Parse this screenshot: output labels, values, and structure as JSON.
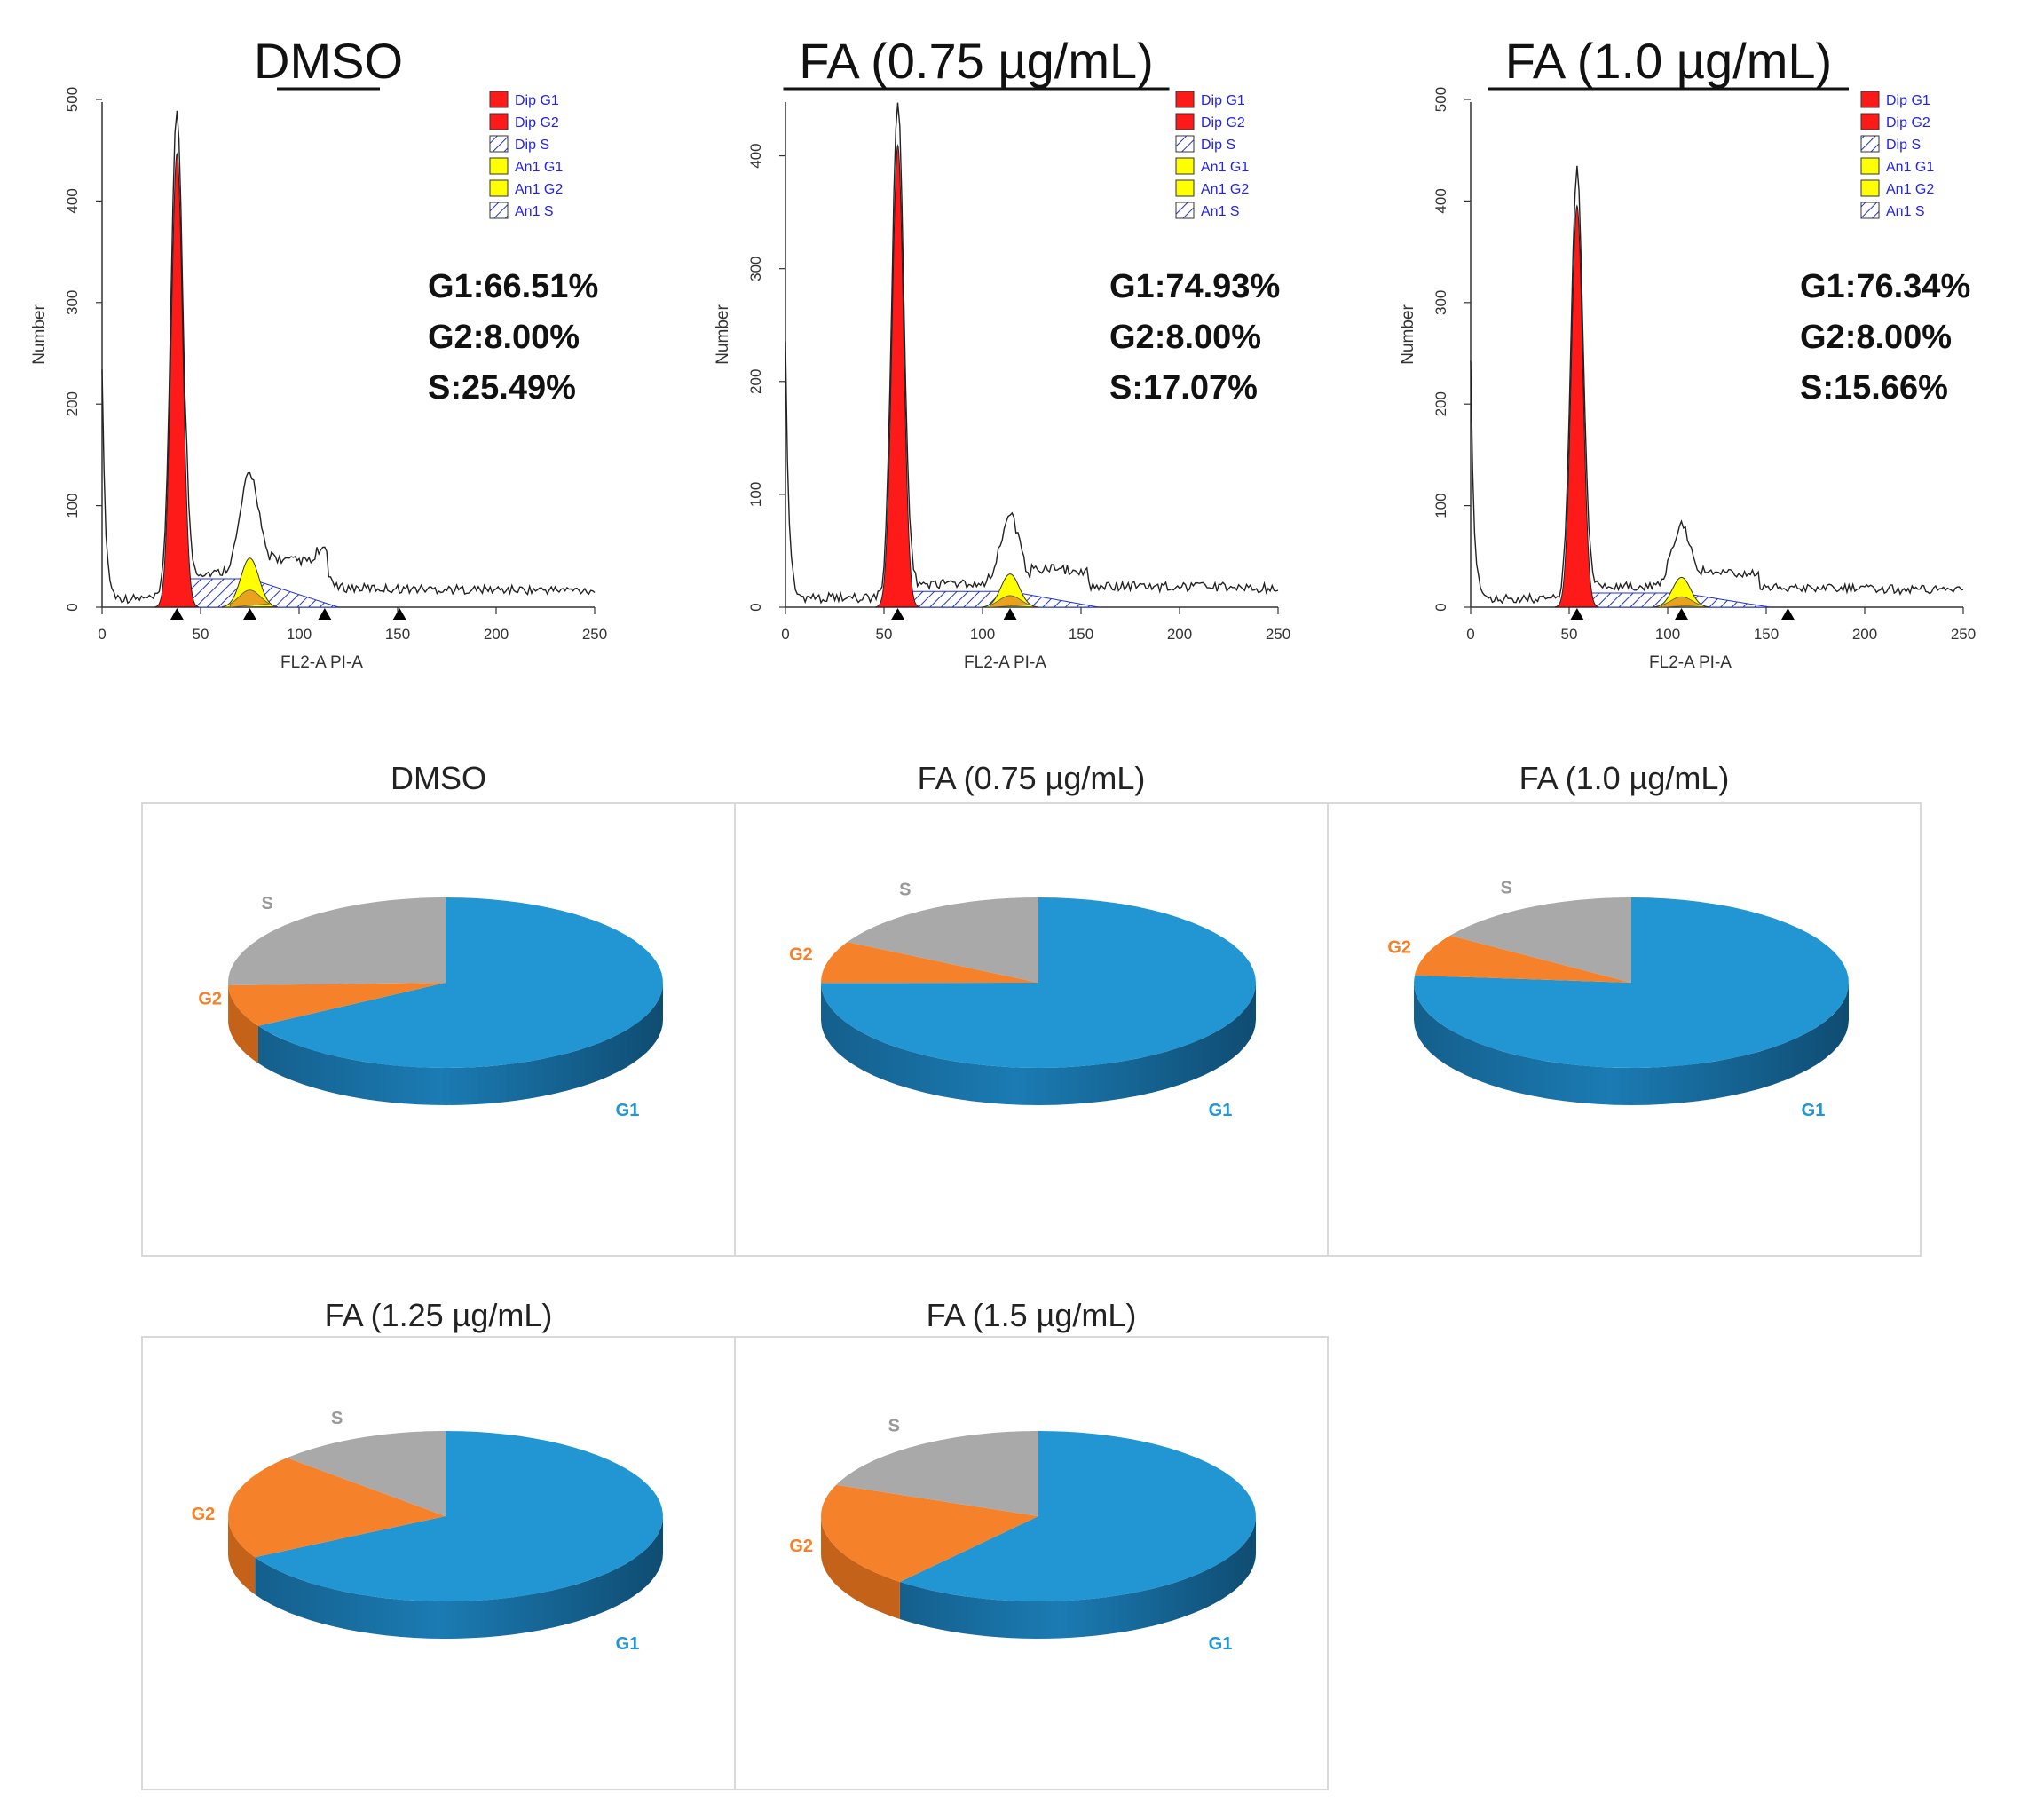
{
  "colors": {
    "g1": "#2196d3",
    "g2": "#f5822a",
    "s": "#a9a9a9",
    "dip": "#ff1a1a",
    "aneu": "#ffff00",
    "s_hatch": "#2233cc",
    "frame": "#d9d9d9"
  },
  "chart_data": [
    {
      "type": "histogram",
      "title": "DMSO",
      "xlabel": "FL2-A PI-A",
      "ylabel": "Number",
      "xlim": [
        0,
        250
      ],
      "ylim": [
        0,
        500
      ],
      "xticks": [
        "0",
        "50",
        "100",
        "150",
        "200",
        "250"
      ],
      "yticks": [
        "0",
        "100",
        "200",
        "300",
        "400",
        "500"
      ],
      "legend": [
        "Dip G1",
        "Dip G2",
        "Dip S",
        "An1 G1",
        "An1 G2",
        "An1 S"
      ],
      "stats": [
        "G1:66.51%",
        "G2:8.00%",
        "S:25.49%"
      ],
      "g1_peak": {
        "x": 38,
        "y": 480
      },
      "g2_peak": {
        "x": 75,
        "y": 115
      },
      "markers_x": [
        38,
        75,
        113,
        151
      ]
    },
    {
      "type": "histogram",
      "title": "FA (0.75 µg/mL)",
      "xlabel": "FL2-A PI-A",
      "ylabel": "Number",
      "xlim": [
        0,
        250
      ],
      "ylim": [
        0,
        450
      ],
      "xticks": [
        "0",
        "50",
        "100",
        "150",
        "200",
        "250"
      ],
      "yticks": [
        "0",
        "100",
        "200",
        "300",
        "400"
      ],
      "legend": [
        "Dip G1",
        "Dip G2",
        "Dip S",
        "An1 G1",
        "An1 G2",
        "An1 S"
      ],
      "stats": [
        "G1:74.93%",
        "G2:8.00%",
        "S:17.07%"
      ],
      "g1_peak": {
        "x": 57,
        "y": 440
      },
      "g2_peak": {
        "x": 114,
        "y": 70
      },
      "markers_x": [
        57,
        114
      ]
    },
    {
      "type": "histogram",
      "title": "FA (1.0 µg/mL)",
      "xlabel": "FL2-A PI-A",
      "ylabel": "Number",
      "xlim": [
        0,
        250
      ],
      "ylim": [
        0,
        500
      ],
      "xticks": [
        "0",
        "50",
        "100",
        "150",
        "200",
        "250"
      ],
      "yticks": [
        "0",
        "100",
        "200",
        "300",
        "400",
        "500"
      ],
      "legend": [
        "Dip G1",
        "Dip G2",
        "Dip S",
        "An1 G1",
        "An1 G2",
        "An1 S"
      ],
      "stats": [
        "G1:76.34%",
        "G2:8.00%",
        "S:15.66%"
      ],
      "g1_peak": {
        "x": 54,
        "y": 425
      },
      "g2_peak": {
        "x": 107,
        "y": 70
      },
      "markers_x": [
        54,
        107,
        161
      ]
    },
    {
      "type": "pie",
      "title": "DMSO",
      "labels": [
        "G1",
        "G2",
        "S"
      ],
      "values": [
        66.51,
        8.0,
        25.49
      ]
    },
    {
      "type": "pie",
      "title": "FA (0.75 µg/mL)",
      "labels": [
        "G1",
        "G2",
        "S"
      ],
      "values": [
        74.93,
        8.0,
        17.07
      ]
    },
    {
      "type": "pie",
      "title": "FA (1.0 µg/mL)",
      "labels": [
        "G1",
        "G2",
        "S"
      ],
      "values": [
        76.34,
        8.0,
        15.66
      ]
    },
    {
      "type": "pie",
      "title": "FA (1.25 µg/mL)",
      "labels": [
        "G1",
        "G2",
        "S"
      ],
      "values": [
        67,
        20,
        13
      ]
    },
    {
      "type": "pie",
      "title": "FA (1.5 µg/mL)",
      "labels": [
        "G1",
        "G2",
        "S"
      ],
      "values": [
        61,
        20,
        19
      ]
    }
  ]
}
